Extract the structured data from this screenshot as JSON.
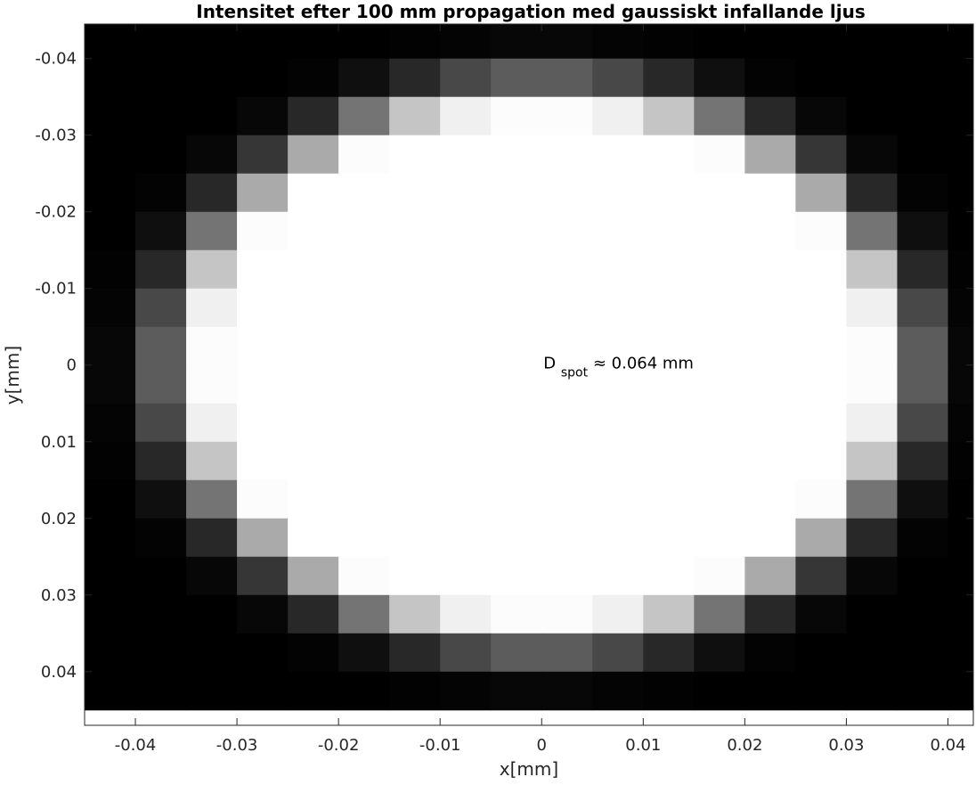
{
  "chart_data": {
    "type": "heatmap",
    "title": "Intensitet efter 100 mm propagation med gaussiskt infallande ljus",
    "xlabel": "x[mm]",
    "ylabel": "y[mm]",
    "xlim": [
      -0.045,
      0.0425
    ],
    "ylim": [
      -0.0445,
      0.047
    ],
    "y_axis_reversed": true,
    "colormap": "gray",
    "cell_size_mm": 0.005,
    "grid": false,
    "xticks": [
      "-0.04",
      "-0.03",
      "-0.02",
      "-0.01",
      "0",
      "0.01",
      "0.02",
      "0.03",
      "0.04"
    ],
    "yticks": [
      "-0.04",
      "-0.03",
      "-0.02",
      "-0.01",
      "0",
      "0.01",
      "0.02",
      "0.03",
      "0.04"
    ],
    "x_centers": [
      -0.0425,
      -0.0375,
      -0.0325,
      -0.0275,
      -0.0225,
      -0.0175,
      -0.0125,
      -0.0075,
      -0.0025,
      0.0025,
      0.0075,
      0.0125,
      0.0175,
      0.0225,
      0.0275,
      0.0325,
      0.0375,
      0.0425
    ],
    "y_centers": [
      -0.0425,
      -0.0375,
      -0.0325,
      -0.0275,
      -0.0225,
      -0.0175,
      -0.0125,
      -0.0075,
      -0.0025,
      0.0025,
      0.0075,
      0.0125,
      0.0175,
      0.0225,
      0.0275,
      0.0325,
      0.0375,
      0.0425
    ],
    "intensity_model": {
      "radius_mm": 0.032,
      "edge_width_mm": 0.0048,
      "inner_value": 1.0,
      "outer_gamma": 0.75
    },
    "annotation": {
      "text_main": "D",
      "text_sub": "spot",
      "text_rest": " ≈ 0.064 mm",
      "x": 0.0,
      "y": 0.0
    }
  }
}
